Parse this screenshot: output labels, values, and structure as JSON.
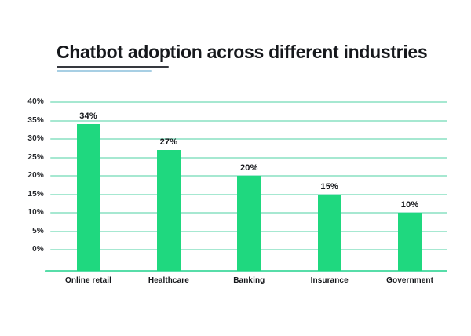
{
  "title": {
    "text": "Chatbot adoption across different industries"
  },
  "chart_data": {
    "type": "bar",
    "title": "Chatbot adoption across different industries",
    "categories": [
      "Online retail",
      "Healthcare",
      "Banking",
      "Insurance",
      "Government"
    ],
    "values": [
      34,
      27,
      20,
      15,
      10
    ],
    "value_labels": [
      "34%",
      "27%",
      "20%",
      "15%",
      "10%"
    ],
    "y_tick_labels": [
      "40%",
      "35%",
      "30%",
      "25%",
      "20%",
      "15%",
      "10%",
      "5%",
      "0%"
    ],
    "y_tick_values": [
      40,
      35,
      30,
      25,
      20,
      15,
      10,
      5,
      0
    ],
    "ylim": [
      0,
      40
    ],
    "xlabel": "",
    "ylabel": "",
    "grid": true,
    "legend": false,
    "colors": {
      "bar": "#1fd87f",
      "gridline": "#a6e8d1",
      "baseline": "#57dda9",
      "title_text": "#16181c",
      "axis_text": "#26282c",
      "title_underline_dark": "#36393f",
      "title_underline_blue": "#a7cfe4",
      "background": "#ffffff"
    }
  }
}
